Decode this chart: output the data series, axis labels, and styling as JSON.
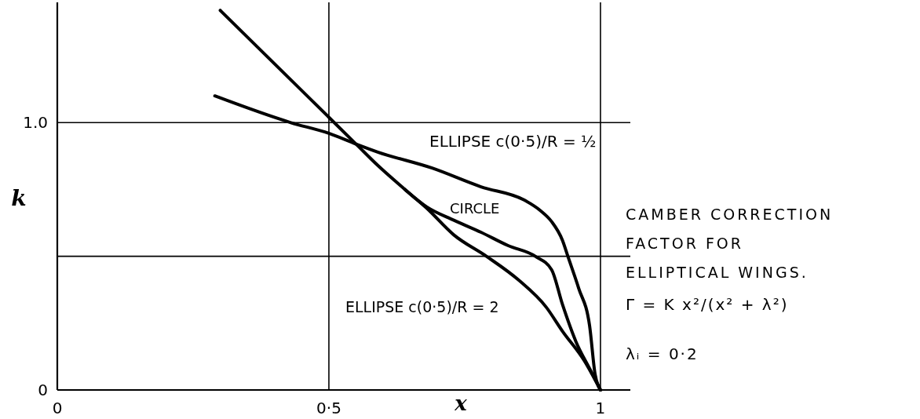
{
  "chart_data": {
    "type": "line",
    "title": "CAMBER CORRECTION FACTOR FOR ELLIPTICAL WINGS.",
    "xlabel": "x",
    "ylabel": "k",
    "annotations": [
      "Γ = K x²/(x² + λ²)",
      "λᵢ = 0·2"
    ],
    "xlim": [
      0,
      1.055
    ],
    "ylim": [
      0,
      1.45
    ],
    "xticks": [
      0,
      {
        "value": 0.5,
        "label": "0·5"
      },
      1
    ],
    "yticks": [
      0,
      {
        "value": 0.5,
        "label": null
      },
      {
        "value": 1,
        "label": "1.0"
      }
    ],
    "grid": true,
    "series": [
      {
        "name": "ELLIPSE c(0·5)/R = ½",
        "color": "#000000",
        "x": [
          0.29,
          0.43,
          0.5,
          0.55,
          0.59,
          0.69,
          0.78,
          0.86,
          0.89,
          0.91,
          0.93,
          0.94,
          0.96,
          0.98,
          0.99,
          1
        ],
        "values": [
          1.1,
          1.0,
          0.96,
          0.92,
          0.89,
          0.83,
          0.76,
          0.71,
          0.67,
          0.63,
          0.56,
          0.5,
          0.38,
          0.24,
          0.06,
          0
        ]
      },
      {
        "name": "CIRCLE",
        "color": "#000000",
        "x": [
          0.64,
          0.68,
          0.73,
          0.78,
          0.83,
          0.88,
          0.91,
          0.93,
          0.955,
          0.98,
          1
        ],
        "values": [
          0.75,
          0.685,
          0.635,
          0.59,
          0.54,
          0.5,
          0.45,
          0.32,
          0.18,
          0.08,
          0
        ]
      },
      {
        "name": "ELLIPSE c(0·5)/R = 2",
        "color": "#000000",
        "x": [
          0.3,
          0.4,
          0.5,
          0.55,
          0.59,
          0.64,
          0.68,
          0.73,
          0.79,
          0.85,
          0.9,
          0.93,
          0.97,
          1
        ],
        "values": [
          1.42,
          1.22,
          1.02,
          0.92,
          0.84,
          0.75,
          0.68,
          0.58,
          0.5,
          0.41,
          0.31,
          0.22,
          0.11,
          0
        ]
      }
    ]
  }
}
